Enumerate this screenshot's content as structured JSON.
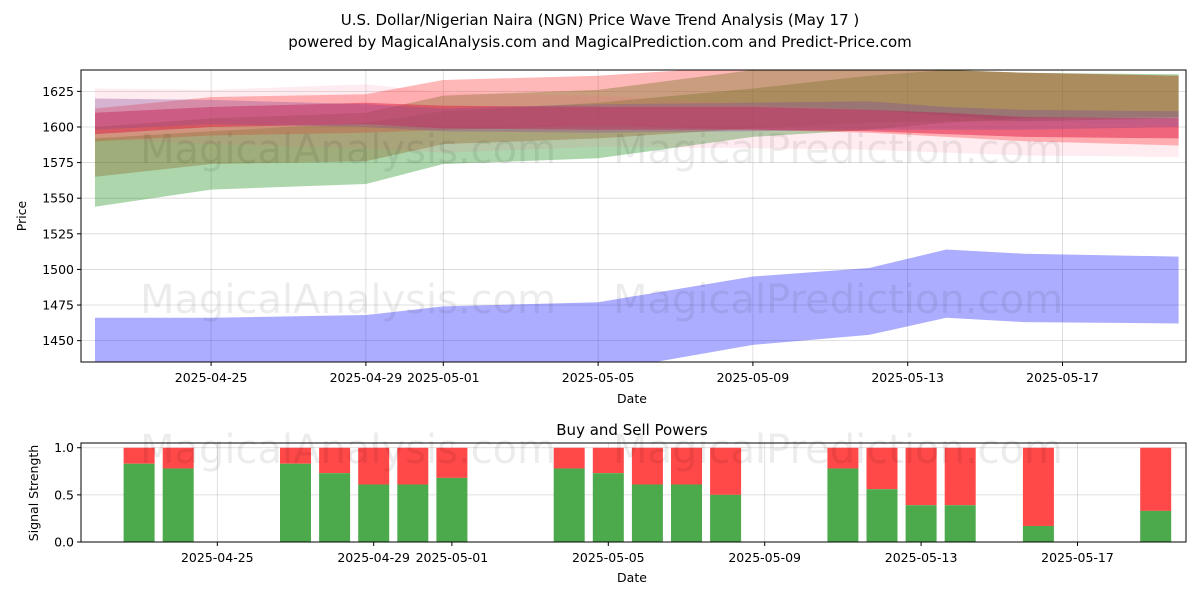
{
  "title_line1": "U.S. Dollar/Nigerian Naira (NGN) Price Wave Trend Analysis (May 17 )",
  "title_line2": "powered by MagicalAnalysis.com and MagicalPrediction.com and Predict-Price.com",
  "watermarks": [
    "MagicalAnalysis.com",
    "MagicalPrediction.com"
  ],
  "chart_data": [
    {
      "type": "area",
      "title": "",
      "xlabel": "Date",
      "ylabel": "Price",
      "x_tick_labels": [
        "2025-04-25",
        "2025-04-29",
        "2025-05-01",
        "2025-05-05",
        "2025-05-09",
        "2025-05-13",
        "2025-05-17"
      ],
      "ylim": [
        1435,
        1640
      ],
      "y_ticks": [
        1450,
        1475,
        1500,
        1525,
        1550,
        1575,
        1600,
        1625
      ],
      "x": [
        0,
        3,
        7,
        9,
        13,
        17,
        20,
        22,
        24,
        28
      ],
      "grid": true,
      "series": [
        {
          "name": "blue-band",
          "color": "#0000ff",
          "opacity": 0.32,
          "upper": [
            1466,
            1466,
            1468,
            1474,
            1477,
            1495,
            1501,
            1514,
            1511,
            1509
          ],
          "lower": [
            1433,
            1430,
            1427,
            1422,
            1428,
            1447,
            1454,
            1466,
            1463,
            1462
          ]
        },
        {
          "name": "green-band",
          "color": "#008000",
          "opacity": 0.32,
          "upper": [
            1592,
            1597,
            1603,
            1611,
            1617,
            1627,
            1636,
            1640,
            1638,
            1637
          ],
          "lower": [
            1544,
            1556,
            1560,
            1574,
            1578,
            1593,
            1598,
            1603,
            1606,
            1607
          ]
        },
        {
          "name": "red-band-1",
          "color": "#ff0000",
          "opacity": 0.28,
          "upper": [
            1613,
            1621,
            1623,
            1633,
            1636,
            1643,
            1642,
            1640,
            1638,
            1636
          ],
          "lower": [
            1590,
            1594,
            1596,
            1598,
            1601,
            1598,
            1596,
            1593,
            1590,
            1587
          ]
        },
        {
          "name": "olive-band",
          "color": "#8b7d3a",
          "opacity": 0.45,
          "upper": [
            1600,
            1606,
            1610,
            1622,
            1626,
            1640,
            1641,
            1640,
            1638,
            1636
          ],
          "lower": [
            1565,
            1574,
            1576,
            1588,
            1592,
            1599,
            1603,
            1604,
            1604,
            1606
          ]
        },
        {
          "name": "crimson-band",
          "color": "#dc143c",
          "opacity": 0.5,
          "upper": [
            1610,
            1614,
            1617,
            1615,
            1614,
            1614,
            1612,
            1610,
            1607,
            1606
          ],
          "lower": [
            1595,
            1600,
            1602,
            1599,
            1598,
            1598,
            1597,
            1595,
            1593,
            1592
          ]
        },
        {
          "name": "purple-band",
          "color": "#7a4a9a",
          "opacity": 0.35,
          "upper": [
            1620,
            1619,
            1616,
            1613,
            1616,
            1617,
            1618,
            1614,
            1612,
            1611
          ],
          "lower": [
            1598,
            1602,
            1600,
            1597,
            1596,
            1597,
            1598,
            1598,
            1598,
            1600
          ]
        },
        {
          "name": "pink-band",
          "color": "#ff6080",
          "opacity": 0.12,
          "upper": [
            1627,
            1626,
            1630,
            1624,
            1622,
            1616,
            1612,
            1608,
            1604,
            1601
          ],
          "lower": [
            1592,
            1588,
            1585,
            1582,
            1586,
            1585,
            1584,
            1582,
            1580,
            1579
          ]
        }
      ]
    },
    {
      "type": "bar",
      "title": "Buy and Sell Powers",
      "xlabel": "Date",
      "ylabel": "Signal Strength",
      "x_tick_labels": [
        "2025-04-25",
        "2025-04-29",
        "2025-05-01",
        "2025-05-05",
        "2025-05-09",
        "2025-05-13",
        "2025-05-17"
      ],
      "ylim": [
        0,
        1.05
      ],
      "y_ticks": [
        0.0,
        0.5,
        1.0
      ],
      "y_tick_labels": [
        "0.0",
        "0.5",
        "1.0"
      ],
      "colors": {
        "buy": "#4caa4c",
        "sell": "#ff4848"
      },
      "days": [
        1,
        2,
        5,
        6,
        7,
        8,
        9,
        12,
        13,
        14,
        15,
        16,
        19,
        20,
        21,
        22,
        24
      ],
      "buy": [
        0.83,
        0.78,
        0.83,
        0.73,
        0.61,
        0.61,
        0.68,
        0.78,
        0.73,
        0.61,
        0.61,
        0.5,
        0.78,
        0.56,
        0.39,
        0.39,
        0.17
      ],
      "sell_total": 1.0,
      "extra_bar": {
        "x_label_day": 27,
        "buy": 0.33
      }
    }
  ]
}
